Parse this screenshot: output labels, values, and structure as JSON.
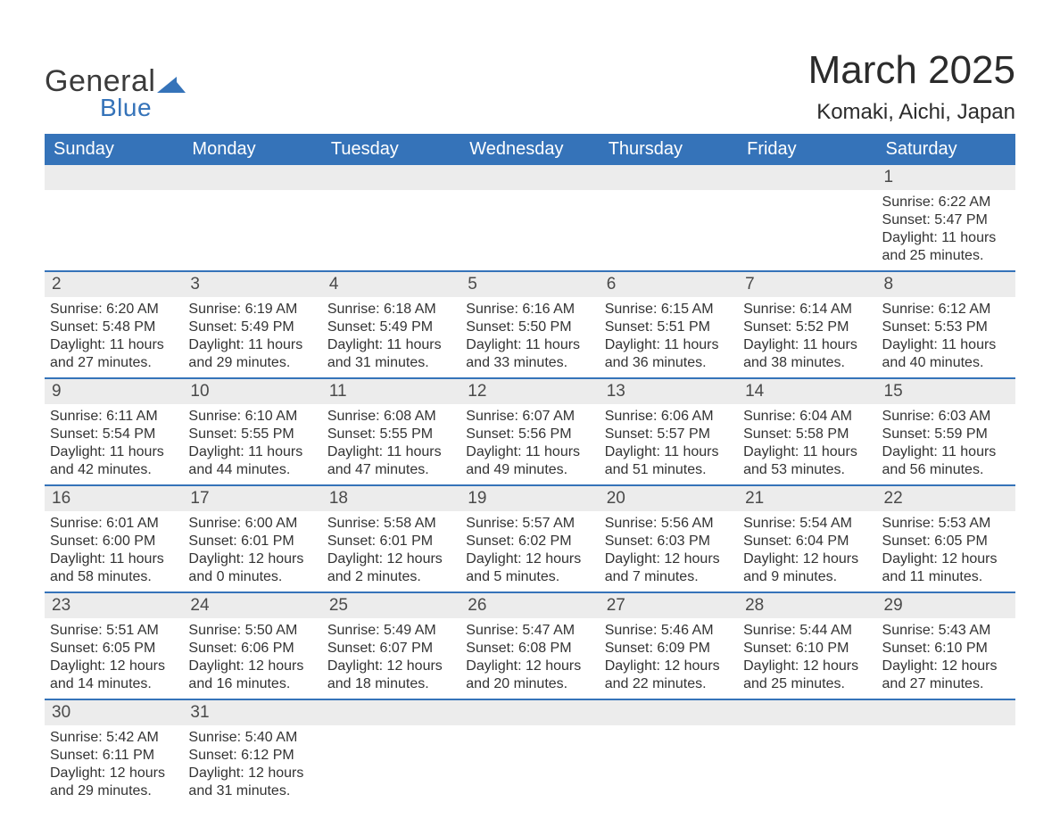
{
  "brand": {
    "text1": "General",
    "text2": "Blue",
    "mark_color": "#3573b9"
  },
  "title": "March 2025",
  "location": "Komaki, Aichi, Japan",
  "colors": {
    "header_bg": "#3573b9",
    "header_fg": "#ffffff",
    "daynum_bg": "#ececec",
    "row_border": "#3573b9",
    "text": "#333333",
    "background": "#ffffff"
  },
  "day_headers": [
    "Sunday",
    "Monday",
    "Tuesday",
    "Wednesday",
    "Thursday",
    "Friday",
    "Saturday"
  ],
  "labels": {
    "sunrise": "Sunrise: ",
    "sunset": "Sunset: ",
    "daylight": "Daylight: "
  },
  "weeks": [
    [
      null,
      null,
      null,
      null,
      null,
      null,
      {
        "n": "1",
        "sunrise": "6:22 AM",
        "sunset": "5:47 PM",
        "daylight": "11 hours and 25 minutes."
      }
    ],
    [
      {
        "n": "2",
        "sunrise": "6:20 AM",
        "sunset": "5:48 PM",
        "daylight": "11 hours and 27 minutes."
      },
      {
        "n": "3",
        "sunrise": "6:19 AM",
        "sunset": "5:49 PM",
        "daylight": "11 hours and 29 minutes."
      },
      {
        "n": "4",
        "sunrise": "6:18 AM",
        "sunset": "5:49 PM",
        "daylight": "11 hours and 31 minutes."
      },
      {
        "n": "5",
        "sunrise": "6:16 AM",
        "sunset": "5:50 PM",
        "daylight": "11 hours and 33 minutes."
      },
      {
        "n": "6",
        "sunrise": "6:15 AM",
        "sunset": "5:51 PM",
        "daylight": "11 hours and 36 minutes."
      },
      {
        "n": "7",
        "sunrise": "6:14 AM",
        "sunset": "5:52 PM",
        "daylight": "11 hours and 38 minutes."
      },
      {
        "n": "8",
        "sunrise": "6:12 AM",
        "sunset": "5:53 PM",
        "daylight": "11 hours and 40 minutes."
      }
    ],
    [
      {
        "n": "9",
        "sunrise": "6:11 AM",
        "sunset": "5:54 PM",
        "daylight": "11 hours and 42 minutes."
      },
      {
        "n": "10",
        "sunrise": "6:10 AM",
        "sunset": "5:55 PM",
        "daylight": "11 hours and 44 minutes."
      },
      {
        "n": "11",
        "sunrise": "6:08 AM",
        "sunset": "5:55 PM",
        "daylight": "11 hours and 47 minutes."
      },
      {
        "n": "12",
        "sunrise": "6:07 AM",
        "sunset": "5:56 PM",
        "daylight": "11 hours and 49 minutes."
      },
      {
        "n": "13",
        "sunrise": "6:06 AM",
        "sunset": "5:57 PM",
        "daylight": "11 hours and 51 minutes."
      },
      {
        "n": "14",
        "sunrise": "6:04 AM",
        "sunset": "5:58 PM",
        "daylight": "11 hours and 53 minutes."
      },
      {
        "n": "15",
        "sunrise": "6:03 AM",
        "sunset": "5:59 PM",
        "daylight": "11 hours and 56 minutes."
      }
    ],
    [
      {
        "n": "16",
        "sunrise": "6:01 AM",
        "sunset": "6:00 PM",
        "daylight": "11 hours and 58 minutes."
      },
      {
        "n": "17",
        "sunrise": "6:00 AM",
        "sunset": "6:01 PM",
        "daylight": "12 hours and 0 minutes."
      },
      {
        "n": "18",
        "sunrise": "5:58 AM",
        "sunset": "6:01 PM",
        "daylight": "12 hours and 2 minutes."
      },
      {
        "n": "19",
        "sunrise": "5:57 AM",
        "sunset": "6:02 PM",
        "daylight": "12 hours and 5 minutes."
      },
      {
        "n": "20",
        "sunrise": "5:56 AM",
        "sunset": "6:03 PM",
        "daylight": "12 hours and 7 minutes."
      },
      {
        "n": "21",
        "sunrise": "5:54 AM",
        "sunset": "6:04 PM",
        "daylight": "12 hours and 9 minutes."
      },
      {
        "n": "22",
        "sunrise": "5:53 AM",
        "sunset": "6:05 PM",
        "daylight": "12 hours and 11 minutes."
      }
    ],
    [
      {
        "n": "23",
        "sunrise": "5:51 AM",
        "sunset": "6:05 PM",
        "daylight": "12 hours and 14 minutes."
      },
      {
        "n": "24",
        "sunrise": "5:50 AM",
        "sunset": "6:06 PM",
        "daylight": "12 hours and 16 minutes."
      },
      {
        "n": "25",
        "sunrise": "5:49 AM",
        "sunset": "6:07 PM",
        "daylight": "12 hours and 18 minutes."
      },
      {
        "n": "26",
        "sunrise": "5:47 AM",
        "sunset": "6:08 PM",
        "daylight": "12 hours and 20 minutes."
      },
      {
        "n": "27",
        "sunrise": "5:46 AM",
        "sunset": "6:09 PM",
        "daylight": "12 hours and 22 minutes."
      },
      {
        "n": "28",
        "sunrise": "5:44 AM",
        "sunset": "6:10 PM",
        "daylight": "12 hours and 25 minutes."
      },
      {
        "n": "29",
        "sunrise": "5:43 AM",
        "sunset": "6:10 PM",
        "daylight": "12 hours and 27 minutes."
      }
    ],
    [
      {
        "n": "30",
        "sunrise": "5:42 AM",
        "sunset": "6:11 PM",
        "daylight": "12 hours and 29 minutes."
      },
      {
        "n": "31",
        "sunrise": "5:40 AM",
        "sunset": "6:12 PM",
        "daylight": "12 hours and 31 minutes."
      },
      null,
      null,
      null,
      null,
      null
    ]
  ]
}
